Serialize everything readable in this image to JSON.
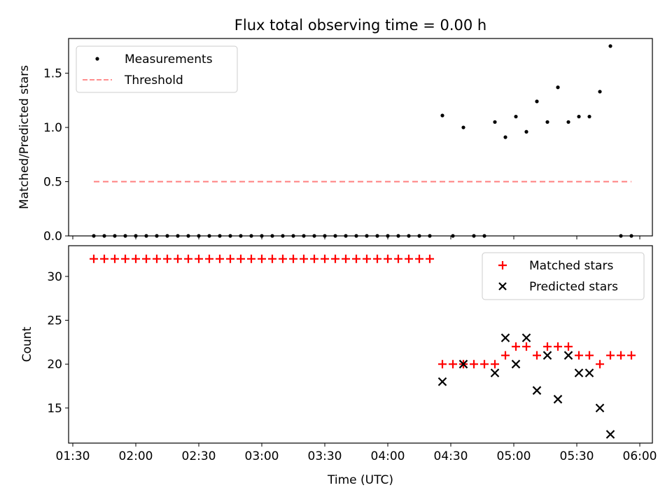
{
  "title": "Flux total observing time = 0.00 h",
  "chart_data": [
    {
      "type": "scatter",
      "title": "Flux total observing time = 0.00 h",
      "xlabel": "",
      "ylabel": "Matched/Predicted stars",
      "xlim": [
        "01:28",
        "06:06"
      ],
      "ylim": [
        0,
        1.82
      ],
      "yticks": [
        0.0,
        0.5,
        1.0,
        1.5
      ],
      "ytick_labels": [
        "0.0",
        "0.5",
        "1.0",
        "1.5"
      ],
      "grid": false,
      "legend_position": "upper-left",
      "legend": [
        "Measurements",
        "Threshold"
      ],
      "series": [
        {
          "name": "Measurements",
          "color": "#000000",
          "marker": "dot",
          "points": [
            [
              "01:40",
              0
            ],
            [
              "01:45",
              0
            ],
            [
              "01:50",
              0
            ],
            [
              "01:55",
              0
            ],
            [
              "02:00",
              0
            ],
            [
              "02:05",
              0
            ],
            [
              "02:10",
              0
            ],
            [
              "02:15",
              0
            ],
            [
              "02:20",
              0
            ],
            [
              "02:25",
              0
            ],
            [
              "02:30",
              0
            ],
            [
              "02:35",
              0
            ],
            [
              "02:40",
              0
            ],
            [
              "02:45",
              0
            ],
            [
              "02:50",
              0
            ],
            [
              "02:55",
              0
            ],
            [
              "03:00",
              0
            ],
            [
              "03:05",
              0
            ],
            [
              "03:10",
              0
            ],
            [
              "03:15",
              0
            ],
            [
              "03:20",
              0
            ],
            [
              "03:25",
              0
            ],
            [
              "03:30",
              0
            ],
            [
              "03:35",
              0
            ],
            [
              "03:40",
              0
            ],
            [
              "03:45",
              0
            ],
            [
              "03:50",
              0
            ],
            [
              "03:55",
              0
            ],
            [
              "04:00",
              0
            ],
            [
              "04:05",
              0
            ],
            [
              "04:10",
              0
            ],
            [
              "04:15",
              0
            ],
            [
              "04:20",
              0
            ],
            [
              "04:26",
              1.11
            ],
            [
              "04:31",
              0
            ],
            [
              "04:36",
              1.0
            ],
            [
              "04:41",
              0
            ],
            [
              "04:46",
              0
            ],
            [
              "04:51",
              1.05
            ],
            [
              "04:56",
              0.91
            ],
            [
              "05:01",
              1.1
            ],
            [
              "05:06",
              0.96
            ],
            [
              "05:11",
              1.24
            ],
            [
              "05:16",
              1.05
            ],
            [
              "05:21",
              1.37
            ],
            [
              "05:26",
              1.05
            ],
            [
              "05:31",
              1.1
            ],
            [
              "05:36",
              1.1
            ],
            [
              "05:41",
              1.33
            ],
            [
              "05:46",
              1.75
            ],
            [
              "05:51",
              0
            ],
            [
              "05:56",
              0
            ]
          ]
        },
        {
          "name": "Threshold",
          "color": "#ff7f7f",
          "style": "dashed",
          "points": [
            [
              "01:40",
              0.5
            ],
            [
              "05:56",
              0.5
            ]
          ]
        }
      ]
    },
    {
      "type": "scatter",
      "title": "",
      "xlabel": "Time (UTC)",
      "ylabel": "Count",
      "xlim": [
        "01:28",
        "06:06"
      ],
      "ylim": [
        11,
        33.5
      ],
      "yticks": [
        15,
        20,
        25,
        30
      ],
      "ytick_labels": [
        "15",
        "20",
        "25",
        "30"
      ],
      "xticks": [
        "01:30",
        "02:00",
        "02:30",
        "03:00",
        "03:30",
        "04:00",
        "04:30",
        "05:00",
        "05:30",
        "06:00"
      ],
      "grid": false,
      "legend_position": "upper-right",
      "legend": [
        "Matched stars",
        "Predicted stars"
      ],
      "series": [
        {
          "name": "Matched stars",
          "color": "#ff0000",
          "marker": "plus",
          "points": [
            [
              "01:40",
              32
            ],
            [
              "01:45",
              32
            ],
            [
              "01:50",
              32
            ],
            [
              "01:55",
              32
            ],
            [
              "02:00",
              32
            ],
            [
              "02:05",
              32
            ],
            [
              "02:10",
              32
            ],
            [
              "02:15",
              32
            ],
            [
              "02:20",
              32
            ],
            [
              "02:25",
              32
            ],
            [
              "02:30",
              32
            ],
            [
              "02:35",
              32
            ],
            [
              "02:40",
              32
            ],
            [
              "02:45",
              32
            ],
            [
              "02:50",
              32
            ],
            [
              "02:55",
              32
            ],
            [
              "03:00",
              32
            ],
            [
              "03:05",
              32
            ],
            [
              "03:10",
              32
            ],
            [
              "03:15",
              32
            ],
            [
              "03:20",
              32
            ],
            [
              "03:25",
              32
            ],
            [
              "03:30",
              32
            ],
            [
              "03:35",
              32
            ],
            [
              "03:40",
              32
            ],
            [
              "03:45",
              32
            ],
            [
              "03:50",
              32
            ],
            [
              "03:55",
              32
            ],
            [
              "04:00",
              32
            ],
            [
              "04:05",
              32
            ],
            [
              "04:10",
              32
            ],
            [
              "04:15",
              32
            ],
            [
              "04:20",
              32
            ],
            [
              "04:26",
              20
            ],
            [
              "04:31",
              20
            ],
            [
              "04:36",
              20
            ],
            [
              "04:41",
              20
            ],
            [
              "04:46",
              20
            ],
            [
              "04:51",
              20
            ],
            [
              "04:56",
              21
            ],
            [
              "05:01",
              22
            ],
            [
              "05:06",
              22
            ],
            [
              "05:11",
              21
            ],
            [
              "05:16",
              22
            ],
            [
              "05:21",
              22
            ],
            [
              "05:26",
              22
            ],
            [
              "05:31",
              21
            ],
            [
              "05:36",
              21
            ],
            [
              "05:41",
              20
            ],
            [
              "05:46",
              21
            ],
            [
              "05:51",
              21
            ],
            [
              "05:56",
              21
            ]
          ]
        },
        {
          "name": "Predicted stars",
          "color": "#000000",
          "marker": "x",
          "points": [
            [
              "04:26",
              18
            ],
            [
              "04:36",
              20
            ],
            [
              "04:51",
              19
            ],
            [
              "04:56",
              23
            ],
            [
              "05:01",
              20
            ],
            [
              "05:06",
              23
            ],
            [
              "05:11",
              17
            ],
            [
              "05:16",
              21
            ],
            [
              "05:21",
              16
            ],
            [
              "05:26",
              21
            ],
            [
              "05:31",
              19
            ],
            [
              "05:36",
              19
            ],
            [
              "05:41",
              15
            ],
            [
              "05:46",
              12
            ]
          ]
        }
      ]
    }
  ]
}
